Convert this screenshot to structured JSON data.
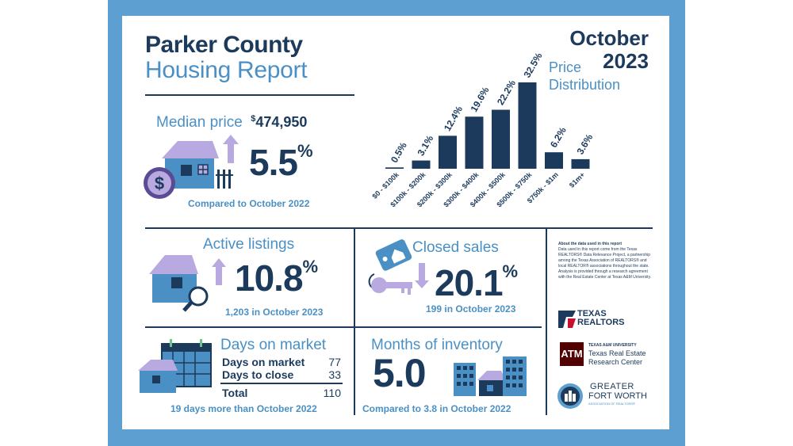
{
  "header": {
    "title_line1": "Parker County",
    "title_line2": "Housing Report",
    "month": "October",
    "year": "2023"
  },
  "median": {
    "label": "Median price",
    "currency_symbol": "$",
    "price": "474,950",
    "change_value": "5.5",
    "change_unit": "%",
    "direction": "up",
    "comparison": "Compared to October 2022"
  },
  "active_listings": {
    "label": "Active listings",
    "change_value": "10.8",
    "change_unit": "%",
    "direction": "up",
    "detail": "1,203 in October 2023"
  },
  "closed_sales": {
    "label": "Closed sales",
    "change_value": "20.1",
    "change_unit": "%",
    "direction": "down",
    "detail": "199 in October 2023"
  },
  "days_on_market": {
    "label": "Days on market",
    "rows": [
      {
        "label": "Days on market",
        "value": "77"
      },
      {
        "label": "Days to close",
        "value": "33"
      }
    ],
    "total_label": "Total",
    "total_value": "110",
    "comparison": "19 days more than October 2022"
  },
  "months_inventory": {
    "label": "Months of inventory",
    "value": "5.0",
    "comparison": "Compared to 3.8 in October 2022"
  },
  "about": {
    "title": "About the data used in this report",
    "body": "Data used in this report come from the Texas REALTORS® Data Relevance Project, a partnership among the Texas Association of REALTORS® and local REALTOR® associations throughout the state. Analysis is provided through a research agreement with the Real Estate Center at Texas A&M University."
  },
  "logos": {
    "texas_realtors": "TEXAS REALTORS",
    "tamu_small": "TEXAS A&M UNIVERSITY",
    "tamu_line1": "Texas Real Estate",
    "tamu_line2": "Research Center",
    "gfw_line1": "GREATER",
    "gfw_line2": "FORT WORTH",
    "gfw_line3": "ASSOCIATION OF REALTORS®"
  },
  "colors": {
    "navy": "#1b3a5c",
    "blue": "#4a90c4",
    "frame": "#5d9fd0",
    "lavender": "#b8a9e0",
    "purple": "#5a4b94"
  },
  "chart_data": {
    "type": "bar",
    "title": "Price Distribution",
    "categories": [
      "$0 - $100k",
      "$100k - $200k",
      "$200k - $300k",
      "$300k - $400k",
      "$400k - $500k",
      "$500k - $750k",
      "$750k - $1m",
      "$1m+"
    ],
    "values": [
      0.5,
      3.1,
      12.4,
      19.6,
      22.2,
      32.5,
      6.2,
      3.6
    ],
    "value_labels": [
      "0.5%",
      "3.1%",
      "12.4%",
      "19.6%",
      "22.2%",
      "32.5%",
      "6.2%",
      "3.6%"
    ],
    "unit": "%",
    "ylim": [
      0,
      32.5
    ],
    "grid": false
  }
}
